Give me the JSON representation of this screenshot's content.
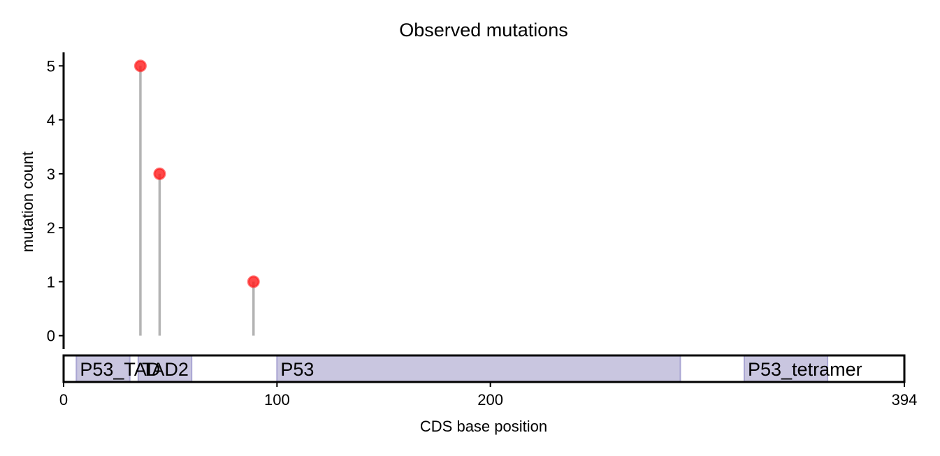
{
  "chart_data": {
    "type": "lollipop",
    "title": "Observed mutations",
    "xlabel": "CDS base position",
    "ylabel": "mutation count",
    "xlim": [
      0,
      394
    ],
    "ylim": [
      -0.25,
      5.25
    ],
    "x_ticks": [
      0,
      100,
      200,
      394
    ],
    "y_ticks": [
      0,
      1,
      2,
      3,
      4,
      5
    ],
    "grid": false,
    "mutations": [
      {
        "x": 36,
        "y": 5
      },
      {
        "x": 45,
        "y": 3
      },
      {
        "x": 89,
        "y": 1
      }
    ],
    "domains": [
      {
        "name": "P53_TAD",
        "start": 6,
        "end": 31
      },
      {
        "name": "TAD2",
        "start": 35,
        "end": 60
      },
      {
        "name": "P53",
        "start": 100,
        "end": 289
      },
      {
        "name": "P53_tetramer",
        "start": 319,
        "end": 358
      }
    ],
    "colors": {
      "marker": "#ff1a1a",
      "stem": "#b3b3b3",
      "domain_fill": "#c9c6e0",
      "domain_edge": "#aaa6d3",
      "axis": "#000000"
    }
  }
}
